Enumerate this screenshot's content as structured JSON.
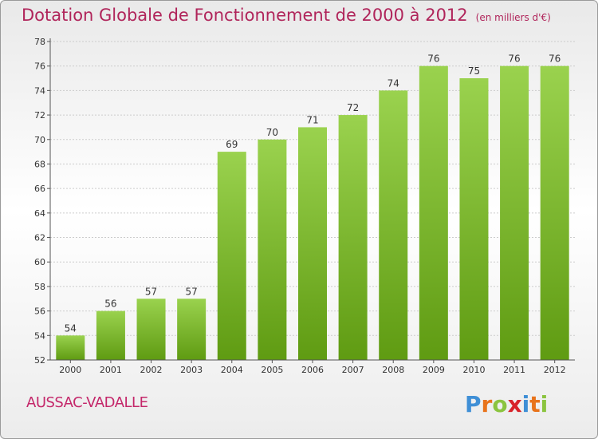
{
  "header": {
    "title": "Dotation Globale de Fonctionnement de 2000 à 2012",
    "unit_note": "(en milliers d'€)"
  },
  "footer": {
    "commune": "AUSSAC-VADALLE",
    "logo_letters": [
      "P",
      "r",
      "o",
      "x",
      "i",
      "t",
      "i"
    ],
    "logo_colors": [
      "#3f8fd6",
      "#e8731b",
      "#8bc43f",
      "#d8232a",
      "#3f8fd6",
      "#e8731b",
      "#8bc43f"
    ]
  },
  "colors": {
    "title": "#b0245a",
    "bar_top": "#9ad24e",
    "bar_bottom": "#5f9b12",
    "grid": "#cccccc"
  },
  "chart_data": {
    "type": "bar",
    "title": "Dotation Globale de Fonctionnement de 2000 à 2012",
    "subtitle": "(en milliers d'€)",
    "xlabel": "",
    "ylabel": "",
    "categories": [
      "2000",
      "2001",
      "2002",
      "2003",
      "2004",
      "2005",
      "2006",
      "2007",
      "2008",
      "2009",
      "2010",
      "2011",
      "2012"
    ],
    "values": [
      54,
      56,
      57,
      57,
      69,
      70,
      71,
      72,
      74,
      76,
      75,
      76,
      76
    ],
    "ylim": [
      52,
      78
    ],
    "yticks": [
      52,
      54,
      56,
      58,
      60,
      62,
      64,
      66,
      68,
      70,
      72,
      74,
      76,
      78
    ],
    "grid": true,
    "data_labels": true
  }
}
